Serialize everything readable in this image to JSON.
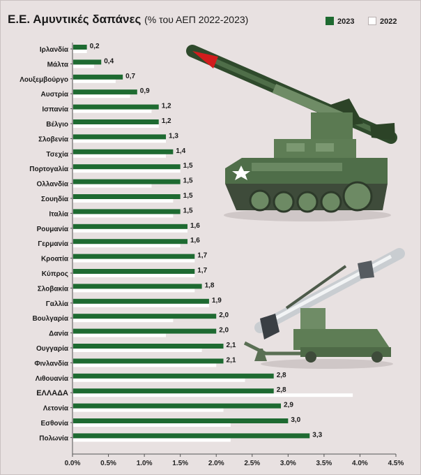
{
  "title": "Ε.Ε. Αμυντικές δαπάνες",
  "subtitle": "(% του ΑΕΠ 2022-2023)",
  "colors": {
    "bar_2023": "#1e6a31",
    "bar_2022": "#ffffff",
    "background": "#e8e1e1"
  },
  "chart_data": {
    "type": "bar",
    "orientation": "horizontal",
    "title": "Ε.Ε. Αμυντικές δαπάνες",
    "subtitle": "(% του ΑΕΠ 2022-2023)",
    "categories": [
      "Ιρλανδία",
      "Μάλτα",
      "Λουξεμβούργο",
      "Αυστρία",
      "Ισπανία",
      "Βέλγιο",
      "Σλοβενία",
      "Τσεχία",
      "Πορτογαλία",
      "Ολλανδία",
      "Σουηδία",
      "Ιταλία",
      "Ρουμανία",
      "Γερμανία",
      "Κροατία",
      "Κύπρος",
      "Σλοβακία",
      "Γαλλία",
      "Βουλγαρία",
      "Δανία",
      "Ουγγαρία",
      "Φινλανδία",
      "Λιθουανία",
      "ΕΛΛΑΔΑ",
      "Λετονία",
      "Εσθονία",
      "Πολωνία"
    ],
    "highlight_category": "ΕΛΛΑΔΑ",
    "series": [
      {
        "name": "2023",
        "values": [
          0.2,
          0.4,
          0.7,
          0.9,
          1.2,
          1.2,
          1.3,
          1.4,
          1.5,
          1.5,
          1.5,
          1.5,
          1.6,
          1.6,
          1.7,
          1.7,
          1.8,
          1.9,
          2.0,
          2.0,
          2.1,
          2.1,
          2.8,
          2.8,
          2.9,
          3.0,
          3.3
        ]
      },
      {
        "name": "2022",
        "values": [
          0.2,
          0.3,
          0.6,
          0.8,
          1.1,
          1.2,
          1.3,
          1.3,
          1.5,
          1.1,
          1.4,
          1.4,
          1.6,
          1.5,
          1.7,
          1.7,
          1.7,
          1.9,
          1.4,
          1.3,
          1.8,
          2.0,
          2.4,
          3.9,
          2.1,
          2.2,
          2.2
        ]
      }
    ],
    "data_labels": [
      "0,2",
      "0,4",
      "0,7",
      "0,9",
      "1,2",
      "1,2",
      "1,3",
      "1,4",
      "1,5",
      "1,5",
      "1,5",
      "1,5",
      "1,6",
      "1,6",
      "1,7",
      "1,7",
      "1,8",
      "1,9",
      "2,0",
      "2,0",
      "2,1",
      "2,1",
      "2,8",
      "2,8",
      "2,9",
      "3,0",
      "3,3"
    ],
    "x_ticks": [
      0,
      0.5,
      1,
      1.5,
      2,
      2.5,
      3,
      3.5,
      4,
      4.5
    ],
    "x_tick_labels": [
      "0.0%",
      "0.5%",
      "1.0%",
      "1.5%",
      "2.0%",
      "2.5%",
      "3.0%",
      "3.5%",
      "4.0%",
      "4.5%"
    ],
    "xlim": [
      0,
      4.5
    ],
    "grid": false,
    "legend_position": "top-right"
  }
}
